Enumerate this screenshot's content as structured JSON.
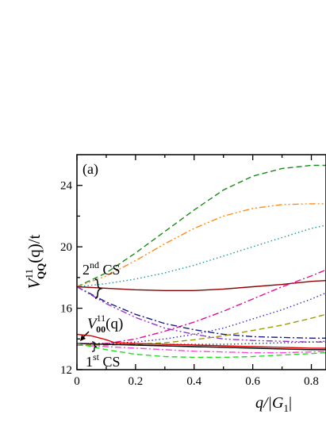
{
  "chart_data": {
    "type": "line",
    "panel_label": "(a)",
    "ylabel": {
      "main": "V",
      "superscript": "11",
      "subscript": "QQ",
      "argument": "(q)/t"
    },
    "xlabel": {
      "main": "q/|G",
      "subscript": "1",
      "suffix": "|"
    },
    "xlim": [
      0,
      0.85
    ],
    "ylim": [
      12,
      26
    ],
    "x_ticks": [
      {
        "value": 0,
        "label": "0"
      },
      {
        "value": 0.2,
        "label": "0.2"
      },
      {
        "value": 0.4,
        "label": "0.4"
      },
      {
        "value": 0.6,
        "label": "0.6"
      },
      {
        "value": 0.8,
        "label": "0.8"
      }
    ],
    "y_ticks": [
      {
        "value": 12,
        "label": "12"
      },
      {
        "value": 16,
        "label": "16"
      },
      {
        "value": 20,
        "label": "20"
      },
      {
        "value": 24,
        "label": "24"
      }
    ],
    "grid": false,
    "annotations": {
      "cs2": {
        "number": "2",
        "superscript": "nd",
        "text": " CS"
      },
      "cs1": {
        "number": "1",
        "superscript": "st",
        "text": " CS"
      },
      "v00": {
        "main": "V",
        "superscript": "11",
        "subscript": "00",
        "argument": "(q)"
      }
    },
    "series": [
      {
        "color": "#1a8a1a",
        "dash": "dashed",
        "x": [
          0,
          0.1,
          0.2,
          0.3,
          0.4,
          0.5,
          0.6,
          0.7,
          0.8,
          0.85
        ],
        "y": [
          17.4,
          18.3,
          19.6,
          21.0,
          22.4,
          23.7,
          24.6,
          25.1,
          25.3,
          25.3
        ]
      },
      {
        "color": "#ff8c1a",
        "dash": "dashdotdot",
        "x": [
          0,
          0.1,
          0.2,
          0.3,
          0.4,
          0.5,
          0.6,
          0.7,
          0.8,
          0.85
        ],
        "y": [
          17.4,
          18.1,
          19.1,
          20.2,
          21.2,
          22.0,
          22.5,
          22.75,
          22.8,
          22.8
        ]
      },
      {
        "color": "#1a9a9a",
        "dash": "dotted",
        "x": [
          0,
          0.1,
          0.2,
          0.3,
          0.4,
          0.5,
          0.6,
          0.7,
          0.8,
          0.85
        ],
        "y": [
          17.4,
          17.6,
          17.9,
          18.3,
          18.8,
          19.4,
          20.0,
          20.6,
          21.2,
          21.4
        ]
      },
      {
        "color": "#8b0000",
        "dash": "solid",
        "x": [
          0,
          0.1,
          0.2,
          0.3,
          0.4,
          0.5,
          0.6,
          0.7,
          0.8,
          0.85
        ],
        "y": [
          17.4,
          17.3,
          17.2,
          17.15,
          17.15,
          17.25,
          17.4,
          17.55,
          17.75,
          17.8
        ]
      },
      {
        "color": "#e0109a",
        "dash": "dashdot",
        "x": [
          0,
          0.1,
          0.2,
          0.3,
          0.4,
          0.5,
          0.6,
          0.7,
          0.8,
          0.85
        ],
        "y": [
          13.7,
          13.7,
          14.0,
          14.5,
          15.1,
          15.8,
          16.6,
          17.4,
          18.1,
          18.5
        ]
      },
      {
        "color": "#3030c8",
        "dash": "dotted",
        "x": [
          0,
          0.1,
          0.2,
          0.3,
          0.4,
          0.5,
          0.6,
          0.7,
          0.8,
          0.85
        ],
        "y": [
          13.7,
          13.7,
          13.8,
          14.0,
          14.3,
          14.7,
          15.3,
          15.9,
          16.6,
          17.0
        ]
      },
      {
        "color": "#1a1a8a",
        "dash": "dashdot",
        "x": [
          0,
          0.1,
          0.2,
          0.3,
          0.4,
          0.5,
          0.6,
          0.7,
          0.8,
          0.85
        ],
        "y": [
          17.4,
          16.4,
          15.6,
          15.0,
          14.6,
          14.3,
          14.15,
          14.1,
          14.05,
          14.05
        ]
      },
      {
        "color": "#9b30d0",
        "dash": "dashdotdot",
        "x": [
          0,
          0.1,
          0.2,
          0.3,
          0.4,
          0.5,
          0.6,
          0.7,
          0.8,
          0.85
        ],
        "y": [
          17.4,
          16.3,
          15.4,
          14.7,
          14.3,
          14.0,
          13.9,
          13.85,
          13.8,
          13.8
        ]
      },
      {
        "color": "#9a9a10",
        "dash": "dashed",
        "x": [
          0,
          0.1,
          0.2,
          0.3,
          0.4,
          0.5,
          0.6,
          0.7,
          0.8,
          0.85
        ],
        "y": [
          13.6,
          13.6,
          13.65,
          13.75,
          13.95,
          14.2,
          14.55,
          14.9,
          15.35,
          15.6
        ]
      },
      {
        "color": "#2f4f4f",
        "dash": "dotted",
        "x": [
          0,
          0.1,
          0.2,
          0.3,
          0.4,
          0.5,
          0.6,
          0.7,
          0.8,
          0.85
        ],
        "y": [
          13.7,
          13.7,
          13.7,
          13.65,
          13.65,
          13.65,
          13.7,
          13.75,
          13.8,
          13.85
        ]
      },
      {
        "color": "#e00000",
        "dash": "solid",
        "x": [
          0,
          0.05,
          0.1,
          0.13,
          0.2,
          0.3,
          0.4,
          0.5,
          0.6,
          0.7,
          0.8,
          0.85
        ],
        "y": [
          14.3,
          14.2,
          13.95,
          13.75,
          13.7,
          13.65,
          13.6,
          13.55,
          13.5,
          13.45,
          13.4,
          13.4
        ]
      },
      {
        "color": "#000000",
        "dash": "solid",
        "x": [
          0,
          0.1,
          0.2,
          0.3,
          0.4,
          0.5,
          0.6,
          0.7,
          0.8,
          0.85
        ],
        "y": [
          13.7,
          13.65,
          13.6,
          13.55,
          13.5,
          13.45,
          13.4,
          13.35,
          13.3,
          13.3
        ]
      },
      {
        "color": "#ff44dd",
        "dash": "dashdot",
        "x": [
          0,
          0.1,
          0.2,
          0.3,
          0.4,
          0.5,
          0.6,
          0.7,
          0.8,
          0.85
        ],
        "y": [
          13.6,
          13.5,
          13.4,
          13.3,
          13.2,
          13.15,
          13.1,
          13.1,
          13.15,
          13.2
        ]
      },
      {
        "color": "#22dd22",
        "dash": "dashed",
        "x": [
          0,
          0.1,
          0.2,
          0.3,
          0.4,
          0.5,
          0.6,
          0.7,
          0.8,
          0.85
        ],
        "y": [
          13.7,
          13.3,
          13.0,
          12.85,
          12.8,
          12.8,
          12.85,
          12.95,
          13.05,
          13.1
        ]
      }
    ]
  }
}
